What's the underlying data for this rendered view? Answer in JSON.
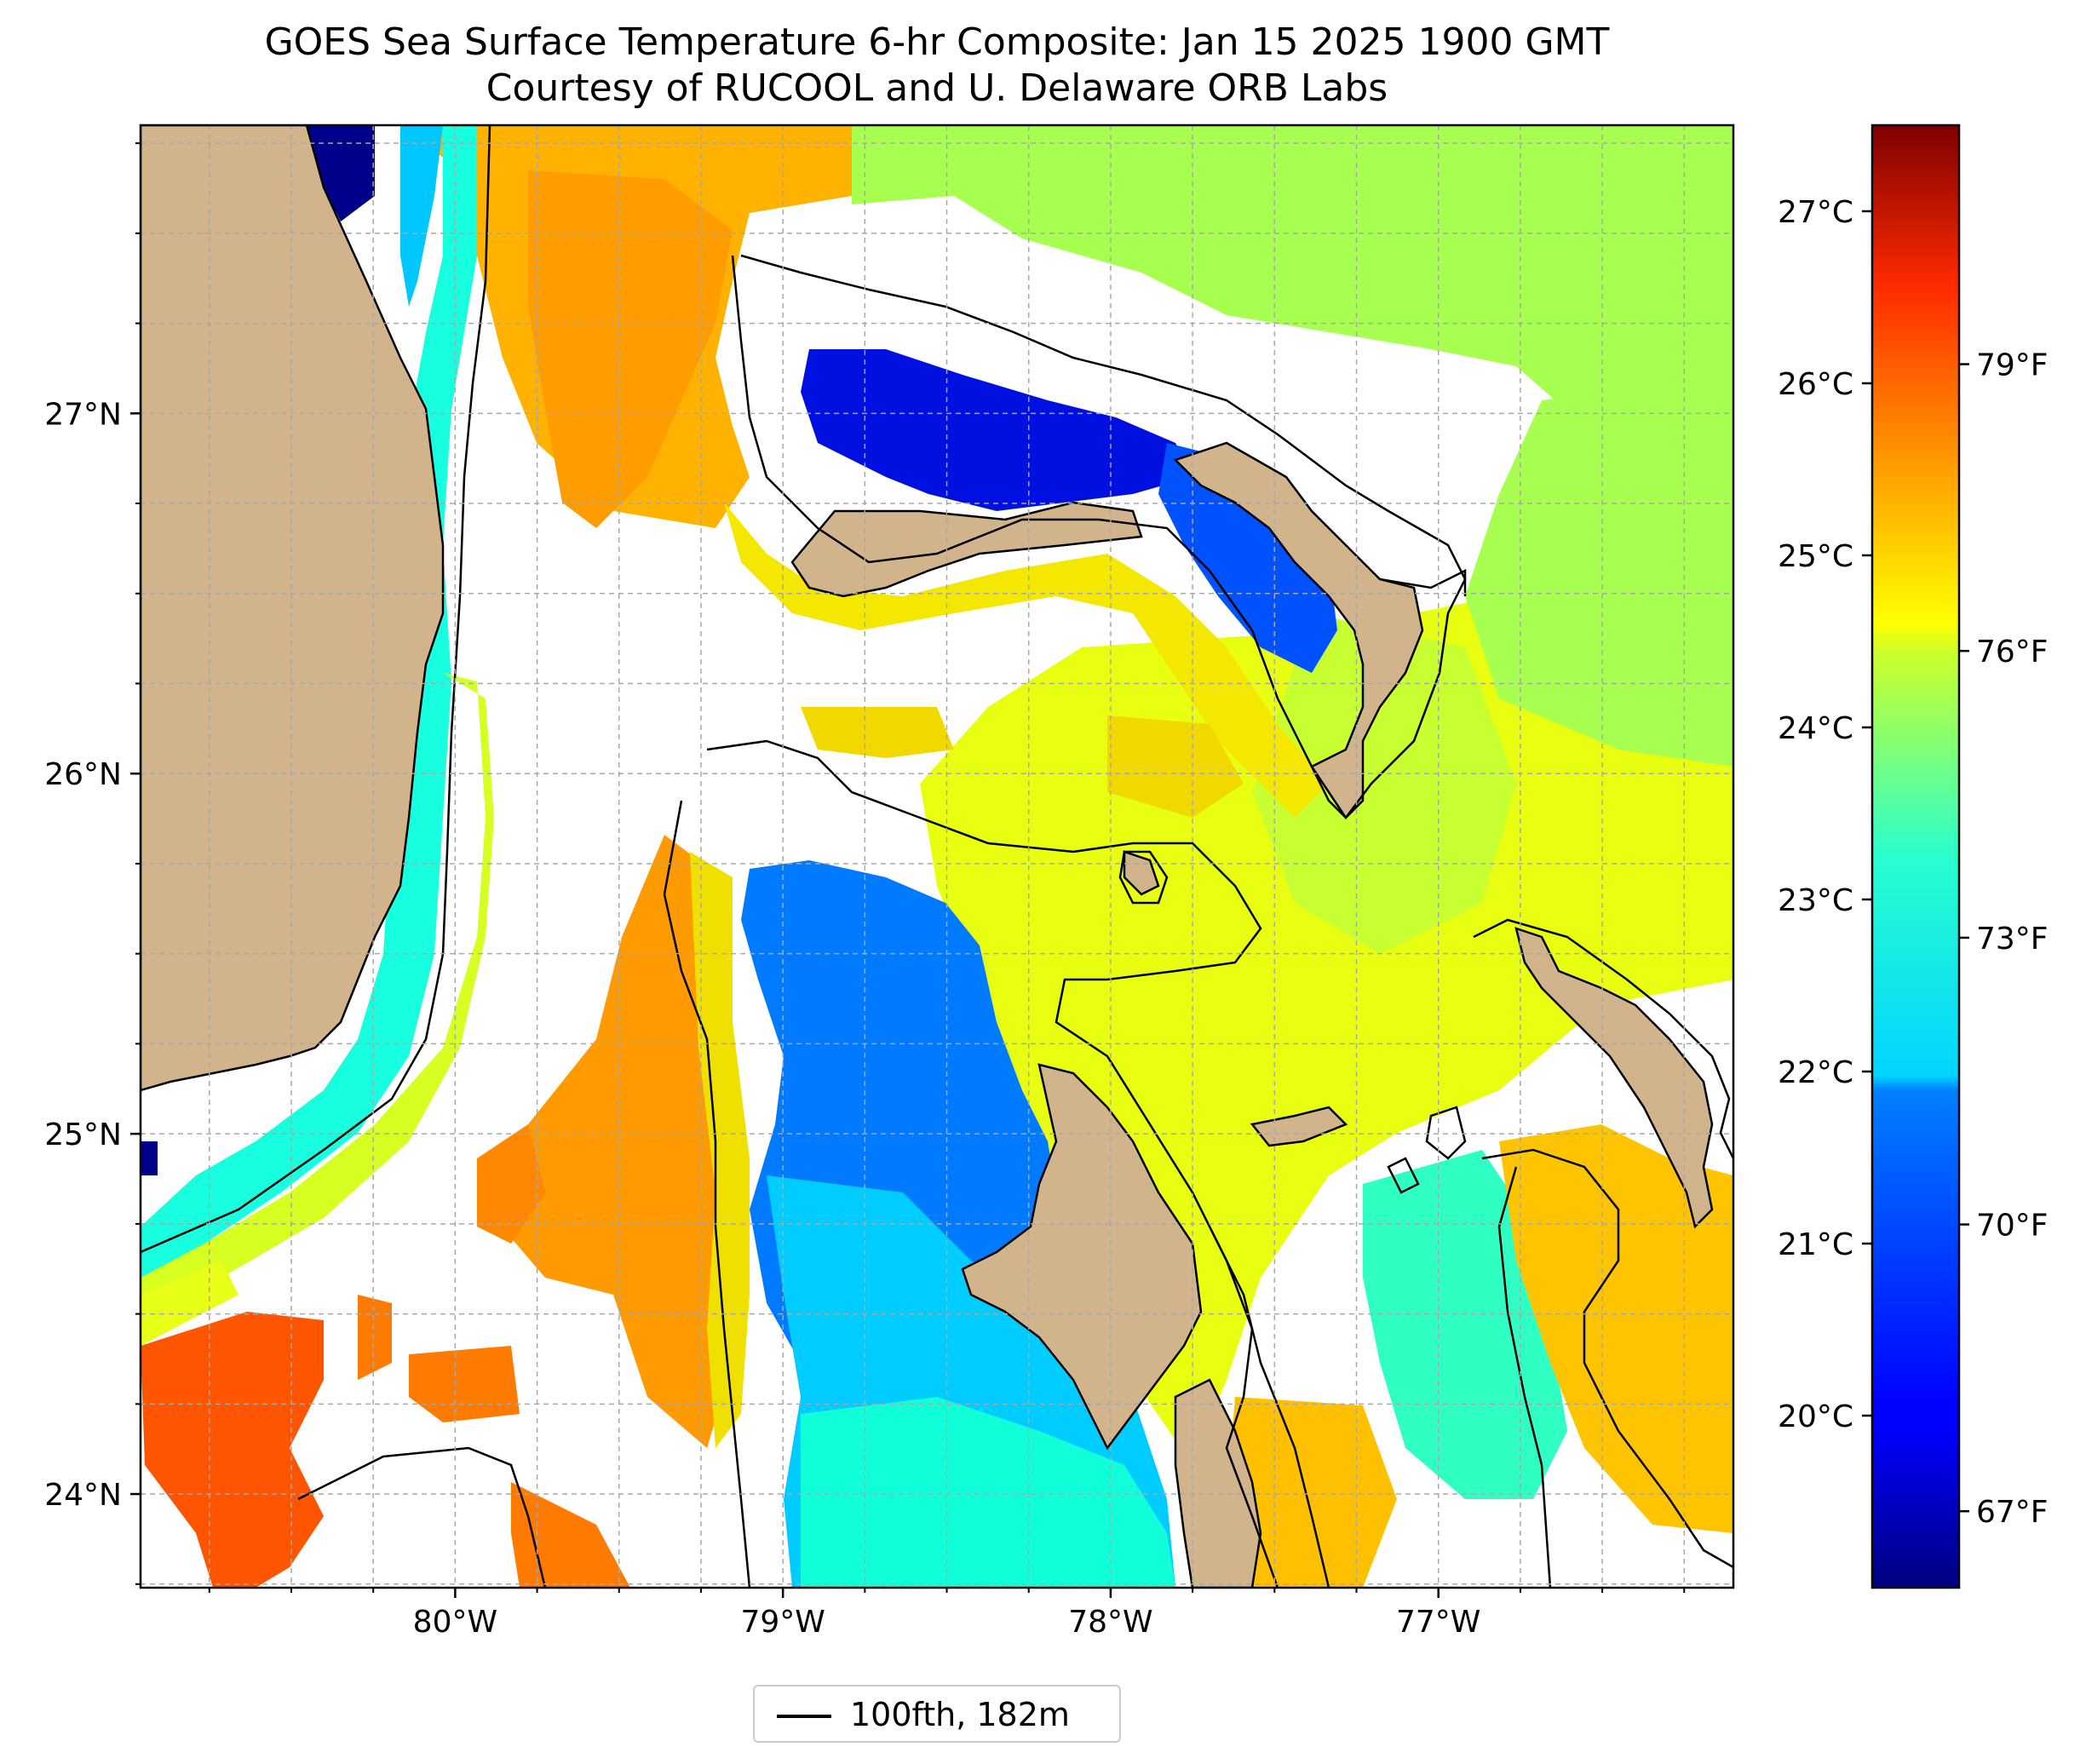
{
  "title": "GOES Sea Surface Temperature 6-hr Composite: Jan 15 2025 1900 GMT",
  "subtitle": "Courtesy of RUCOOL and U. Delaware ORB Labs",
  "map": {
    "extent": {
      "lon_min": -80.96,
      "lon_max": -76.1,
      "lat_min": 23.74,
      "lat_max": 27.8
    },
    "lon_ticks": [
      {
        "value": -80,
        "label": "80°W"
      },
      {
        "value": -79,
        "label": "79°W"
      },
      {
        "value": -78,
        "label": "78°W"
      },
      {
        "value": -77,
        "label": "77°W"
      }
    ],
    "lat_ticks": [
      {
        "value": 24,
        "label": "24°N"
      },
      {
        "value": 25,
        "label": "25°N"
      },
      {
        "value": 26,
        "label": "26°N"
      },
      {
        "value": 27,
        "label": "27°N"
      }
    ],
    "gridlines": true,
    "land_color": "#d2b48c",
    "no_data_color": "#ffffff",
    "contour_label": "100fth, 182m",
    "legend_location": "lower center, below map"
  },
  "colorbar": {
    "colormap": "jet",
    "range_f": [
      66.2,
      81.5
    ],
    "celsius_ticks": [
      {
        "value": 20,
        "label": "20°C"
      },
      {
        "value": 21,
        "label": "21°C"
      },
      {
        "value": 22,
        "label": "22°C"
      },
      {
        "value": 23,
        "label": "23°C"
      },
      {
        "value": 24,
        "label": "24°C"
      },
      {
        "value": 25,
        "label": "25°C"
      },
      {
        "value": 26,
        "label": "26°C"
      },
      {
        "value": 27,
        "label": "27°C"
      }
    ],
    "fahrenheit_ticks": [
      {
        "value": 67,
        "label": "67°F"
      },
      {
        "value": 70,
        "label": "70°F"
      },
      {
        "value": 73,
        "label": "73°F"
      },
      {
        "value": 76,
        "label": "76°F"
      },
      {
        "value": 79,
        "label": "79°F"
      }
    ]
  }
}
